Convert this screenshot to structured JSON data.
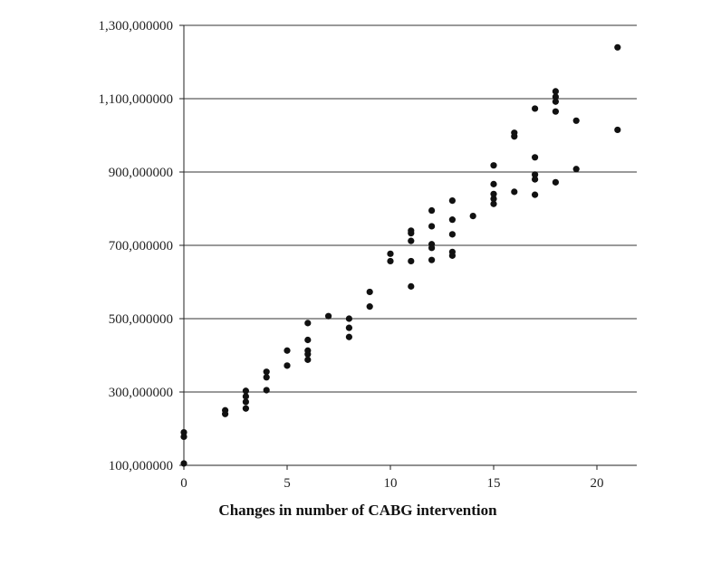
{
  "chart_data": {
    "type": "scatter",
    "title": "",
    "xlabel": "Changes in number of CABG intervention",
    "ylabel": "",
    "xlim": [
      0,
      22
    ],
    "ylim": [
      100000000,
      1300000000
    ],
    "x_ticks": [
      0,
      5,
      10,
      15,
      20
    ],
    "x_tick_labels": [
      "0",
      "5",
      "10",
      "15",
      "20"
    ],
    "y_ticks": [
      100000000,
      300000000,
      500000000,
      700000000,
      900000000,
      1100000000,
      1300000000
    ],
    "y_tick_labels": [
      "100,000000",
      "300,000000",
      "500,000000",
      "700,000000",
      "900,000000",
      "1,100,000000",
      "1,300,000000"
    ],
    "grid": "horizontal",
    "point_color": "#111111",
    "series": [
      {
        "points": [
          {
            "x": 0,
            "y": 190000000
          },
          {
            "x": 0,
            "y": 178000000
          },
          {
            "x": 0,
            "y": 105000000
          },
          {
            "x": 2,
            "y": 250000000
          },
          {
            "x": 2,
            "y": 240000000
          },
          {
            "x": 3,
            "y": 303000000
          },
          {
            "x": 3,
            "y": 288000000
          },
          {
            "x": 3,
            "y": 273000000
          },
          {
            "x": 3,
            "y": 255000000
          },
          {
            "x": 4,
            "y": 355000000
          },
          {
            "x": 4,
            "y": 340000000
          },
          {
            "x": 4,
            "y": 305000000
          },
          {
            "x": 5,
            "y": 413000000
          },
          {
            "x": 5,
            "y": 372000000
          },
          {
            "x": 6,
            "y": 488000000
          },
          {
            "x": 6,
            "y": 442000000
          },
          {
            "x": 6,
            "y": 413000000
          },
          {
            "x": 6,
            "y": 403000000
          },
          {
            "x": 6,
            "y": 388000000
          },
          {
            "x": 7,
            "y": 507000000
          },
          {
            "x": 8,
            "y": 500000000
          },
          {
            "x": 8,
            "y": 475000000
          },
          {
            "x": 8,
            "y": 450000000
          },
          {
            "x": 9,
            "y": 573000000
          },
          {
            "x": 9,
            "y": 533000000
          },
          {
            "x": 10,
            "y": 677000000
          },
          {
            "x": 10,
            "y": 657000000
          },
          {
            "x": 11,
            "y": 740000000
          },
          {
            "x": 11,
            "y": 733000000
          },
          {
            "x": 11,
            "y": 712000000
          },
          {
            "x": 11,
            "y": 657000000
          },
          {
            "x": 11,
            "y": 588000000
          },
          {
            "x": 12,
            "y": 795000000
          },
          {
            "x": 12,
            "y": 752000000
          },
          {
            "x": 12,
            "y": 703000000
          },
          {
            "x": 12,
            "y": 693000000
          },
          {
            "x": 12,
            "y": 660000000
          },
          {
            "x": 13,
            "y": 822000000
          },
          {
            "x": 13,
            "y": 770000000
          },
          {
            "x": 13,
            "y": 730000000
          },
          {
            "x": 13,
            "y": 682000000
          },
          {
            "x": 13,
            "y": 672000000
          },
          {
            "x": 14,
            "y": 780000000
          },
          {
            "x": 15,
            "y": 918000000
          },
          {
            "x": 15,
            "y": 867000000
          },
          {
            "x": 15,
            "y": 840000000
          },
          {
            "x": 15,
            "y": 827000000
          },
          {
            "x": 15,
            "y": 813000000
          },
          {
            "x": 16,
            "y": 1007000000
          },
          {
            "x": 16,
            "y": 997000000
          },
          {
            "x": 16,
            "y": 846000000
          },
          {
            "x": 17,
            "y": 1073000000
          },
          {
            "x": 17,
            "y": 940000000
          },
          {
            "x": 17,
            "y": 893000000
          },
          {
            "x": 17,
            "y": 880000000
          },
          {
            "x": 17,
            "y": 838000000
          },
          {
            "x": 18,
            "y": 1120000000
          },
          {
            "x": 18,
            "y": 1105000000
          },
          {
            "x": 18,
            "y": 1092000000
          },
          {
            "x": 18,
            "y": 1065000000
          },
          {
            "x": 18,
            "y": 872000000
          },
          {
            "x": 19,
            "y": 1040000000
          },
          {
            "x": 19,
            "y": 908000000
          },
          {
            "x": 21,
            "y": 1240000000
          },
          {
            "x": 21,
            "y": 1015000000
          }
        ]
      }
    ]
  }
}
